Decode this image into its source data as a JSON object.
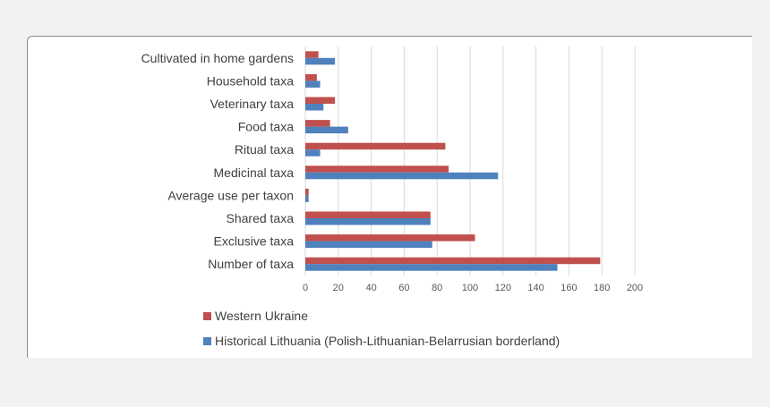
{
  "chart_data": {
    "type": "bar",
    "orientation": "horizontal",
    "categories": [
      "Cultivated in home gardens",
      "Household taxa",
      "Veterinary taxa",
      "Food taxa",
      "Ritual taxa",
      "Medicinal taxa",
      "Average use per taxon",
      "Shared taxa",
      "Exclusive taxa",
      "Number of taxa"
    ],
    "series": [
      {
        "name": "Western Ukraine",
        "color": "#c0504d",
        "values": [
          8,
          7,
          18,
          15,
          85,
          87,
          2,
          76,
          103,
          179
        ]
      },
      {
        "name": "Historical Lithuania (Polish-Lithuanian-Belarrusian borderland)",
        "color": "#4f81bd",
        "values": [
          18,
          9,
          11,
          26,
          9,
          117,
          2,
          76,
          77,
          153
        ]
      }
    ],
    "xticks": [
      "0",
      "20",
      "40",
      "60",
      "80",
      "100",
      "120",
      "140",
      "160",
      "180",
      "200"
    ],
    "xlim": [
      0,
      200
    ],
    "grid": true,
    "legend_position": "bottom"
  }
}
